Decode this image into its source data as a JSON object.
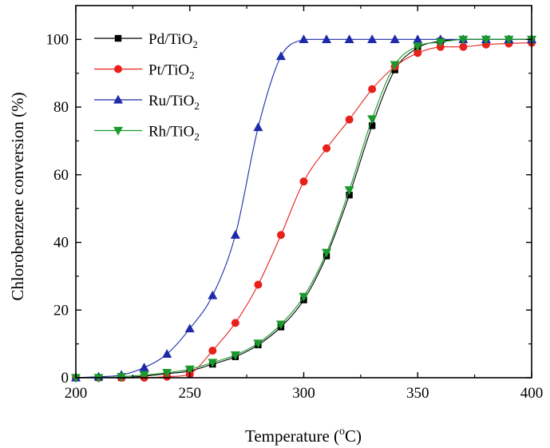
{
  "chart_data": {
    "type": "line",
    "title": "",
    "xlabel": "Temperature (oC)",
    "xlabel_parts": {
      "base": "Temperature (",
      "sup": "o",
      "end": "C)"
    },
    "ylabel": "Chlorobenzene conversion (%)",
    "xlim": [
      200,
      400
    ],
    "ylim": [
      0,
      110
    ],
    "xticks": [
      200,
      250,
      300,
      350,
      400
    ],
    "yticks": [
      0,
      20,
      40,
      60,
      80,
      100
    ],
    "grid": false,
    "legend_position": "top-left",
    "series": [
      {
        "name": "Pd/TiO2",
        "name_base": "Pd/TiO",
        "name_sub": "2",
        "color": "#000000",
        "marker": "square",
        "x": [
          200,
          210,
          220,
          230,
          240,
          250,
          260,
          270,
          280,
          290,
          300,
          310,
          320,
          330,
          340,
          350,
          360,
          370,
          380,
          390,
          400
        ],
        "y": [
          0,
          0,
          0,
          0.5,
          1.2,
          2,
          4,
          6.2,
          9.7,
          15,
          23,
          36,
          54,
          74.5,
          91,
          97.5,
          99.5,
          100,
          100,
          100,
          100
        ]
      },
      {
        "name": "Pt/TiO2",
        "name_base": "Pt/TiO",
        "name_sub": "2",
        "color": "#e8201a",
        "marker": "circle",
        "x": [
          200,
          210,
          220,
          230,
          240,
          250,
          260,
          270,
          280,
          290,
          300,
          310,
          320,
          330,
          340,
          350,
          360,
          370,
          380,
          390,
          400
        ],
        "y": [
          0,
          0,
          0,
          0,
          0.3,
          1,
          8,
          16.2,
          27.5,
          42.2,
          58,
          67.8,
          76.3,
          85.3,
          92,
          96,
          97.8,
          97.8,
          98.5,
          98.8,
          99
        ]
      },
      {
        "name": "Ru/TiO2",
        "name_base": "Ru/TiO",
        "name_sub": "2",
        "color": "#1f2aa8",
        "marker": "triangle-up",
        "x": [
          200,
          210,
          220,
          230,
          240,
          250,
          260,
          270,
          280,
          290,
          300,
          310,
          320,
          330,
          340,
          350,
          360,
          370,
          380,
          390,
          400
        ],
        "y": [
          0,
          0.3,
          0.8,
          3,
          7,
          14.5,
          24.3,
          42.2,
          74,
          95,
          100,
          100,
          100,
          100,
          100,
          100,
          100,
          100,
          100,
          100,
          100
        ]
      },
      {
        "name": "Rh/TiO2",
        "name_base": "Rh/TiO",
        "name_sub": "2",
        "color": "#1a9a2c",
        "marker": "triangle-down",
        "x": [
          200,
          210,
          220,
          230,
          240,
          250,
          260,
          270,
          280,
          290,
          300,
          310,
          320,
          330,
          340,
          350,
          360,
          370,
          380,
          390,
          400
        ],
        "y": [
          0,
          0,
          0.3,
          0.8,
          1.5,
          2.5,
          4.5,
          6.7,
          10.2,
          15.8,
          24,
          37,
          55.5,
          76.5,
          92.5,
          98,
          99.2,
          100,
          100,
          100,
          100
        ]
      }
    ]
  }
}
